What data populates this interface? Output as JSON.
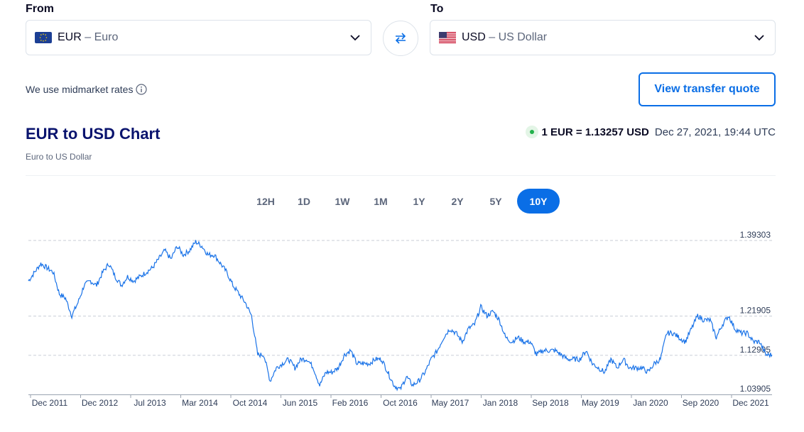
{
  "converter": {
    "from_label": "From",
    "to_label": "To",
    "from": {
      "code": "EUR",
      "sep": " – ",
      "name": "Euro",
      "flag": "eu-flag-icon"
    },
    "to": {
      "code": "USD",
      "sep": " – ",
      "name": "US Dollar",
      "flag": "us-flag-icon"
    },
    "swap_icon": "swap-arrows-icon"
  },
  "midmarket_text": "We use midmarket rates",
  "quote_button": "View transfer quote",
  "header": {
    "title": "EUR to USD Chart",
    "subtitle": "Euro to US Dollar",
    "rate_text": "1 EUR = 1.13257 USD",
    "timestamp": "Dec 27, 2021, 19:44 UTC"
  },
  "periods": [
    "12H",
    "1D",
    "1W",
    "1M",
    "1Y",
    "2Y",
    "5Y",
    "10Y"
  ],
  "active_period": "10Y",
  "colors": {
    "accent": "#0a6ee6",
    "line": "#1a73e8",
    "live": "#22b14c",
    "title": "#0a146e"
  },
  "chart_data": {
    "type": "line",
    "title": "EUR to USD Chart",
    "xlabel": "",
    "ylabel": "",
    "ylim": [
      1.03905,
      1.39303
    ],
    "grid": true,
    "y_ticks": [
      "1.39303",
      "1.21905",
      "1.12905",
      "1.03905"
    ],
    "x_ticks": [
      "Dec 2011",
      "Dec 2012",
      "Jul 2013",
      "Mar 2014",
      "Oct 2014",
      "Jun 2015",
      "Feb 2016",
      "Oct 2016",
      "May 2017",
      "Jan 2018",
      "Sep 2018",
      "May 2019",
      "Jan 2020",
      "Sep 2020",
      "Dec 2021"
    ],
    "series": [
      {
        "values": [
          [
            "2011-12",
            1.3
          ],
          [
            "2012-01",
            1.32
          ],
          [
            "2012-02",
            1.34
          ],
          [
            "2012-03",
            1.33
          ],
          [
            "2012-04",
            1.32
          ],
          [
            "2012-05",
            1.27
          ],
          [
            "2012-06",
            1.26
          ],
          [
            "2012-07",
            1.22
          ],
          [
            "2012-08",
            1.25
          ],
          [
            "2012-09",
            1.29
          ],
          [
            "2012-10",
            1.3
          ],
          [
            "2012-11",
            1.29
          ],
          [
            "2012-12",
            1.32
          ],
          [
            "2013-01",
            1.34
          ],
          [
            "2013-02",
            1.31
          ],
          [
            "2013-03",
            1.29
          ],
          [
            "2013-04",
            1.31
          ],
          [
            "2013-05",
            1.3
          ],
          [
            "2013-06",
            1.31
          ],
          [
            "2013-07",
            1.32
          ],
          [
            "2013-08",
            1.33
          ],
          [
            "2013-09",
            1.35
          ],
          [
            "2013-10",
            1.37
          ],
          [
            "2013-11",
            1.35
          ],
          [
            "2013-12",
            1.38
          ],
          [
            "2014-01",
            1.36
          ],
          [
            "2014-02",
            1.37
          ],
          [
            "2014-03",
            1.39
          ],
          [
            "2014-04",
            1.38
          ],
          [
            "2014-05",
            1.36
          ],
          [
            "2014-06",
            1.36
          ],
          [
            "2014-07",
            1.34
          ],
          [
            "2014-08",
            1.32
          ],
          [
            "2014-09",
            1.29
          ],
          [
            "2014-10",
            1.27
          ],
          [
            "2014-11",
            1.25
          ],
          [
            "2014-12",
            1.22
          ],
          [
            "2015-01",
            1.13
          ],
          [
            "2015-02",
            1.13
          ],
          [
            "2015-03",
            1.07
          ],
          [
            "2015-04",
            1.1
          ],
          [
            "2015-05",
            1.11
          ],
          [
            "2015-06",
            1.12
          ],
          [
            "2015-07",
            1.1
          ],
          [
            "2015-08",
            1.12
          ],
          [
            "2015-09",
            1.12
          ],
          [
            "2015-10",
            1.1
          ],
          [
            "2015-11",
            1.06
          ],
          [
            "2015-12",
            1.09
          ],
          [
            "2016-01",
            1.09
          ],
          [
            "2016-02",
            1.1
          ],
          [
            "2016-03",
            1.13
          ],
          [
            "2016-04",
            1.14
          ],
          [
            "2016-05",
            1.11
          ],
          [
            "2016-06",
            1.11
          ],
          [
            "2016-07",
            1.11
          ],
          [
            "2016-08",
            1.12
          ],
          [
            "2016-09",
            1.12
          ],
          [
            "2016-10",
            1.09
          ],
          [
            "2016-11",
            1.06
          ],
          [
            "2016-12",
            1.05
          ],
          [
            "2017-01",
            1.08
          ],
          [
            "2017-02",
            1.06
          ],
          [
            "2017-03",
            1.07
          ],
          [
            "2017-04",
            1.09
          ],
          [
            "2017-05",
            1.12
          ],
          [
            "2017-06",
            1.14
          ],
          [
            "2017-07",
            1.17
          ],
          [
            "2017-08",
            1.19
          ],
          [
            "2017-09",
            1.18
          ],
          [
            "2017-10",
            1.16
          ],
          [
            "2017-11",
            1.19
          ],
          [
            "2017-12",
            1.2
          ],
          [
            "2018-01",
            1.24
          ],
          [
            "2018-02",
            1.22
          ],
          [
            "2018-03",
            1.23
          ],
          [
            "2018-04",
            1.21
          ],
          [
            "2018-05",
            1.17
          ],
          [
            "2018-06",
            1.16
          ],
          [
            "2018-07",
            1.17
          ],
          [
            "2018-08",
            1.16
          ],
          [
            "2018-09",
            1.16
          ],
          [
            "2018-10",
            1.13
          ],
          [
            "2018-11",
            1.14
          ],
          [
            "2018-12",
            1.14
          ],
          [
            "2019-01",
            1.14
          ],
          [
            "2019-02",
            1.13
          ],
          [
            "2019-03",
            1.12
          ],
          [
            "2019-04",
            1.12
          ],
          [
            "2019-05",
            1.12
          ],
          [
            "2019-06",
            1.14
          ],
          [
            "2019-07",
            1.11
          ],
          [
            "2019-08",
            1.1
          ],
          [
            "2019-09",
            1.09
          ],
          [
            "2019-10",
            1.12
          ],
          [
            "2019-11",
            1.1
          ],
          [
            "2019-12",
            1.12
          ],
          [
            "2020-01",
            1.1
          ],
          [
            "2020-02",
            1.1
          ],
          [
            "2020-03",
            1.1
          ],
          [
            "2020-04",
            1.09
          ],
          [
            "2020-05",
            1.11
          ],
          [
            "2020-06",
            1.12
          ],
          [
            "2020-07",
            1.18
          ],
          [
            "2020-08",
            1.18
          ],
          [
            "2020-09",
            1.17
          ],
          [
            "2020-10",
            1.16
          ],
          [
            "2020-11",
            1.19
          ],
          [
            "2020-12",
            1.22
          ],
          [
            "2021-01",
            1.21
          ],
          [
            "2021-02",
            1.21
          ],
          [
            "2021-03",
            1.17
          ],
          [
            "2021-04",
            1.2
          ],
          [
            "2021-05",
            1.22
          ],
          [
            "2021-06",
            1.19
          ],
          [
            "2021-07",
            1.18
          ],
          [
            "2021-08",
            1.18
          ],
          [
            "2021-09",
            1.16
          ],
          [
            "2021-10",
            1.16
          ],
          [
            "2021-11",
            1.13
          ],
          [
            "2021-12",
            1.13
          ]
        ]
      }
    ]
  }
}
